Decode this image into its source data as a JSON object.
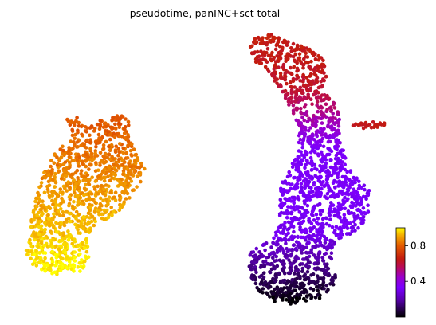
{
  "chart_data": {
    "type": "scatter",
    "title": "pseudotime, panINC+sct total",
    "xlabel": "",
    "ylabel": "",
    "axes_visible": false,
    "grid": false,
    "colormap": "gnuplot",
    "colorbar": {
      "range": [
        0,
        1
      ],
      "ticks": [
        0.4,
        0.8
      ],
      "tick_labels": [
        "0.4",
        "0.8"
      ],
      "placement": "bottom-right"
    },
    "point_count_estimate": 3500,
    "clusters": [
      {
        "label": "left cluster",
        "pseudotime_range": [
          0.75,
          1.0
        ],
        "dominant_color": "#f2a900"
      },
      {
        "label": "right cluster (main body)",
        "pseudotime_range": [
          0.0,
          0.6
        ],
        "dominant_color": "#7a00ff"
      },
      {
        "label": "right small side patch",
        "pseudotime_range": [
          0.6,
          0.65
        ],
        "dominant_color": "#c01010"
      }
    ]
  }
}
